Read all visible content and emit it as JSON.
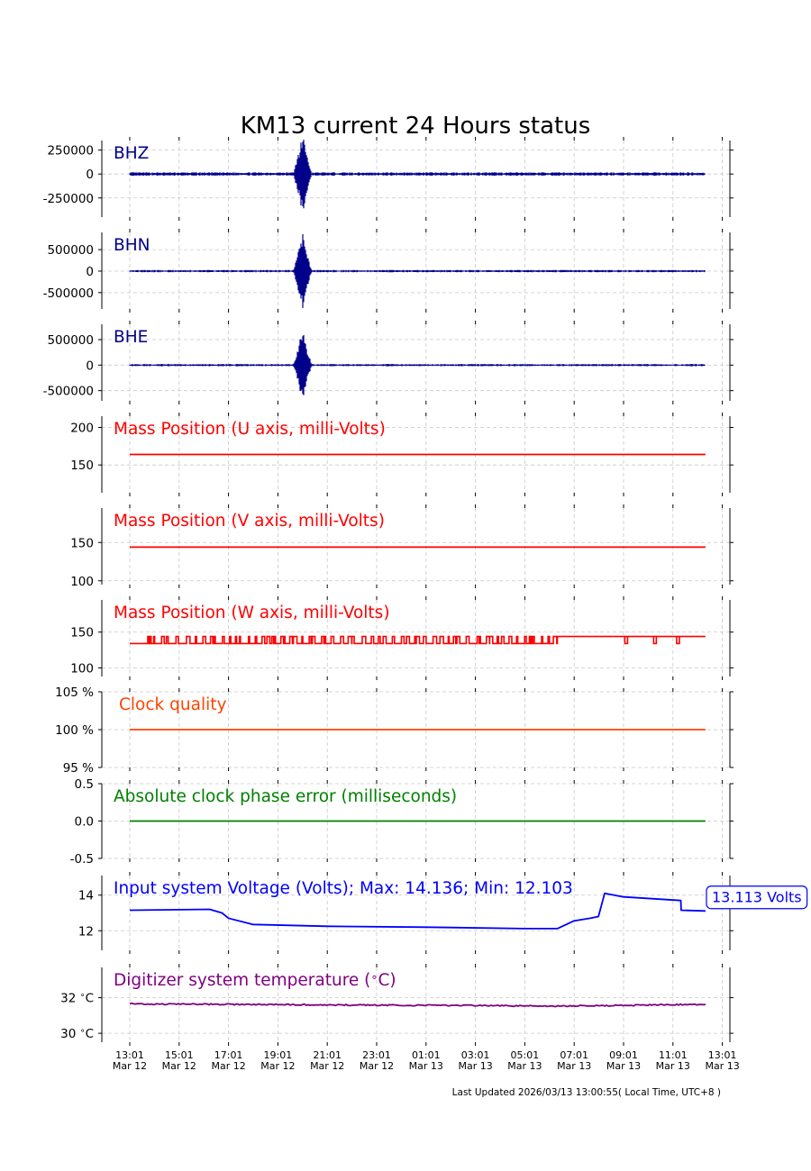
{
  "title": "KM13 current 24 Hours status",
  "footer": "Last Updated 2026/03/13 13:00:55( Local Time, UTC+8 )",
  "x_ticks": [
    {
      "time": "13:01",
      "date": "Mar 12"
    },
    {
      "time": "15:01",
      "date": "Mar 12"
    },
    {
      "time": "17:01",
      "date": "Mar 12"
    },
    {
      "time": "19:01",
      "date": "Mar 12"
    },
    {
      "time": "21:01",
      "date": "Mar 12"
    },
    {
      "time": "23:01",
      "date": "Mar 12"
    },
    {
      "time": "01:01",
      "date": "Mar 13"
    },
    {
      "time": "03:01",
      "date": "Mar 13"
    },
    {
      "time": "05:01",
      "date": "Mar 13"
    },
    {
      "time": "07:01",
      "date": "Mar 13"
    },
    {
      "time": "09:01",
      "date": "Mar 13"
    },
    {
      "time": "11:01",
      "date": "Mar 13"
    },
    {
      "time": "13:01",
      "date": "Mar 13"
    }
  ],
  "colors": {
    "waveform": "#00008b",
    "mass": "#ff0000",
    "clock": "#ff4500",
    "phase": "#008000",
    "voltage": "#0000ff",
    "temperature": "#800080",
    "grid": "#c8c8c8"
  },
  "chart_data": [
    {
      "type": "line",
      "label": "BHZ",
      "label_color": "#00008b",
      "yticks": [
        250000,
        0,
        -250000
      ],
      "ytick_labels": [
        "250000",
        "0",
        "-250000"
      ],
      "ylim": [
        -450000,
        350000
      ],
      "series": [
        {
          "kind": "waveform",
          "noise": 12000,
          "burst_time": "20:01 Mar 12",
          "burst_amplitude": 450000
        }
      ]
    },
    {
      "type": "line",
      "label": "BHN",
      "label_color": "#00008b",
      "yticks": [
        500000,
        0,
        -500000
      ],
      "ytick_labels": [
        "500000",
        "0",
        "-500000"
      ],
      "ylim": [
        -880000,
        900000
      ],
      "series": [
        {
          "kind": "waveform",
          "noise": 18000,
          "burst_time": "20:01 Mar 12",
          "burst_amplitude": 880000
        }
      ]
    },
    {
      "type": "line",
      "label": "BHE",
      "label_color": "#00008b",
      "yticks": [
        500000,
        0,
        -500000
      ],
      "ytick_labels": [
        "500000",
        "0",
        "-500000"
      ],
      "ylim": [
        -700000,
        800000
      ],
      "series": [
        {
          "kind": "waveform",
          "noise": 15000,
          "burst_time": "20:01 Mar 12",
          "burst_amplitude": 700000
        }
      ]
    },
    {
      "type": "line",
      "label": "Mass Position (U axis, milli-Volts)",
      "label_color": "#ff0000",
      "yticks": [
        200,
        150
      ],
      "ytick_labels": [
        "200",
        "150"
      ],
      "ylim": [
        113,
        215
      ],
      "series": [
        {
          "kind": "constant",
          "value": 164
        }
      ]
    },
    {
      "type": "line",
      "label": "Mass Position (V axis, milli-Volts)",
      "label_color": "#ff0000",
      "yticks": [
        150,
        100
      ],
      "ytick_labels": [
        "150",
        "100"
      ],
      "ylim": [
        95,
        195
      ],
      "series": [
        {
          "kind": "constant",
          "value": 144
        }
      ]
    },
    {
      "type": "line",
      "label": "Mass Position (W axis, milli-Volts)",
      "label_color": "#ff0000",
      "yticks": [
        150,
        100
      ],
      "ytick_labels": [
        "150",
        "100"
      ],
      "ylim": [
        88,
        195
      ],
      "series": [
        {
          "kind": "step",
          "low": 134,
          "high": 144,
          "switch_time": "06:20 Mar 13"
        }
      ]
    },
    {
      "type": "line",
      "label": "Clock quality",
      "label_color": "#ff4500",
      "yticks": [
        105,
        100,
        95
      ],
      "ytick_labels": [
        "105 %",
        "100 %",
        "95 %"
      ],
      "ylim": [
        95,
        105
      ],
      "series": [
        {
          "kind": "constant",
          "value": 100
        }
      ]
    },
    {
      "type": "line",
      "label": "Absolute clock phase error (milliseconds)",
      "label_color": "#008000",
      "yticks": [
        0.5,
        0.0,
        -0.5
      ],
      "ytick_labels": [
        "0.5",
        "0.0",
        "-0.5"
      ],
      "ylim": [
        -0.5,
        0.5
      ],
      "series": [
        {
          "kind": "constant",
          "value": 0.0
        }
      ]
    },
    {
      "type": "line",
      "label": "Input system Voltage (Volts);    Max: 14.136; Min: 12.103",
      "label_color": "#0000ff",
      "callout": "13.113 Volts",
      "yticks": [
        14,
        12
      ],
      "ytick_labels": [
        "14",
        "12"
      ],
      "ylim": [
        10.9,
        15.1
      ],
      "series": [
        {
          "kind": "points",
          "x": [
            "13:01 Mar 12",
            "16:15 Mar 12",
            "16:45 Mar 12",
            "17:01 Mar 12",
            "18:00 Mar 12",
            "21:00 Mar 12",
            "01:00 Mar 13",
            "05:00 Mar 13",
            "06:20 Mar 13",
            "07:00 Mar 13",
            "07:40 Mar 13",
            "08:00 Mar 13",
            "08:15 Mar 13",
            "09:01 Mar 13",
            "11:20 Mar 13",
            "11:21 Mar 13",
            "12:20 Mar 13"
          ],
          "y": [
            13.15,
            13.2,
            13.0,
            12.7,
            12.35,
            12.25,
            12.2,
            12.12,
            12.12,
            12.55,
            12.7,
            12.8,
            14.1,
            13.9,
            13.7,
            13.15,
            13.113
          ]
        }
      ]
    },
    {
      "type": "line",
      "label": "Digitizer system temperature ($^\\circ$C)",
      "label_color": "#800080",
      "yticks": [
        32,
        30
      ],
      "ytick_labels": [
        "32 $^\\circ$C",
        "30 $^\\circ$C"
      ],
      "ylim": [
        29.5,
        33.7
      ],
      "series": [
        {
          "kind": "points",
          "x": [
            "13:01 Mar 12",
            "01:01 Mar 13",
            "07:01 Mar 13",
            "12:20 Mar 13"
          ],
          "y": [
            31.65,
            31.57,
            31.53,
            31.63
          ]
        }
      ]
    }
  ]
}
